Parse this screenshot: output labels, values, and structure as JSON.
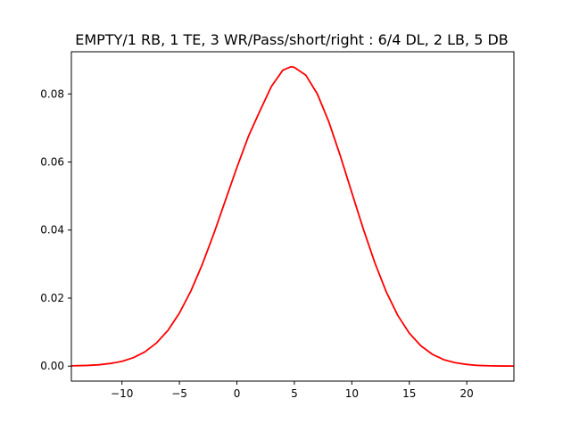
{
  "chart_data": {
    "type": "line",
    "title": "EMPTY/1 RB, 1 TE, 3 WR/Pass/short/right : 6/4 DL, 2 LB, 5 DB",
    "xlabel": "",
    "ylabel": "",
    "xlim": [
      -14.4,
      24.1
    ],
    "ylim": [
      -0.0044,
      0.0924
    ],
    "x_ticks": [
      -10,
      -5,
      0,
      5,
      10,
      15,
      20
    ],
    "y_ticks": [
      0.0,
      0.02,
      0.04,
      0.06,
      0.08
    ],
    "y_tick_labels": [
      "0.00",
      "0.02",
      "0.04",
      "0.06",
      "0.08"
    ],
    "x_tick_labels": [
      "−10",
      "−5",
      "0",
      "5",
      "10",
      "15",
      "20"
    ],
    "grid": false,
    "legend": "none",
    "series": [
      {
        "color": "#ff0000",
        "x": [
          -14.4,
          -13,
          -12,
          -11,
          -10,
          -9,
          -8,
          -7,
          -6,
          -5,
          -4,
          -3,
          -2,
          -1,
          0,
          1,
          2,
          3,
          4,
          4.7,
          5,
          6,
          7,
          8,
          9,
          10,
          11,
          12,
          13,
          14,
          15,
          16,
          17,
          18,
          19,
          20,
          21,
          22,
          23,
          24.1
        ],
        "y": [
          0.0001,
          0.0002,
          0.0004,
          0.0008,
          0.0014,
          0.0025,
          0.0042,
          0.0068,
          0.0105,
          0.0156,
          0.0221,
          0.03,
          0.039,
          0.0487,
          0.0584,
          0.0675,
          0.075,
          0.0822,
          0.087,
          0.088,
          0.0878,
          0.0855,
          0.08,
          0.0718,
          0.0618,
          0.051,
          0.0403,
          0.0304,
          0.0218,
          0.0149,
          0.0097,
          0.006,
          0.0035,
          0.0019,
          0.001,
          0.0005,
          0.0002,
          0.0001,
          5e-05,
          2e-05
        ]
      }
    ]
  }
}
